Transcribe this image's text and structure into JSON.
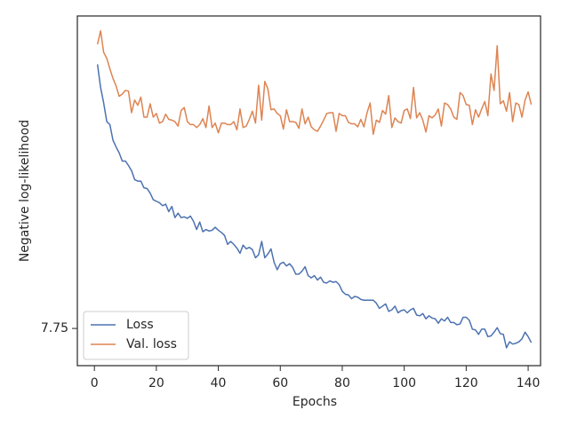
{
  "chart_data": {
    "type": "line",
    "x_label": "Epochs",
    "y_label": "Negative log-likelihood",
    "x": [
      1,
      2,
      3,
      4,
      5,
      6,
      7,
      8,
      9,
      10,
      11,
      12,
      13,
      14,
      15,
      16,
      17,
      18,
      19,
      20,
      21,
      22,
      23,
      24,
      25,
      26,
      27,
      28,
      29,
      30,
      31,
      32,
      33,
      34,
      35,
      36,
      37,
      38,
      39,
      40,
      41,
      42,
      43,
      44,
      45,
      46,
      47,
      48,
      49,
      50,
      51,
      52,
      53,
      54,
      55,
      56,
      57,
      58,
      59,
      60,
      61,
      62,
      63,
      64,
      65,
      66,
      67,
      68,
      69,
      70,
      71,
      72,
      73,
      74,
      75,
      76,
      77,
      78,
      79,
      80,
      81,
      82,
      83,
      84,
      85,
      86,
      87,
      88,
      89,
      90,
      91,
      92,
      93,
      94,
      95,
      96,
      97,
      98,
      99,
      100,
      101,
      102,
      103,
      104,
      105,
      106,
      107,
      108,
      109,
      110,
      111,
      112,
      113,
      114,
      115,
      116,
      117,
      118,
      119,
      120,
      121,
      122,
      123,
      124,
      125,
      126,
      127,
      128,
      129,
      130,
      131,
      132,
      133,
      134,
      135,
      136,
      137,
      138,
      139,
      140,
      141
    ],
    "series": [
      {
        "name": "Loss",
        "color": "#4c72b0",
        "values": [
          8.105,
          8.074,
          8.053,
          8.028,
          8.024,
          8.003,
          7.994,
          7.986,
          7.975,
          7.975,
          7.969,
          7.962,
          7.95,
          7.948,
          7.948,
          7.939,
          7.938,
          7.932,
          7.923,
          7.921,
          7.919,
          7.915,
          7.917,
          7.907,
          7.914,
          7.899,
          7.905,
          7.899,
          7.9,
          7.898,
          7.901,
          7.894,
          7.883,
          7.893,
          7.88,
          7.883,
          7.881,
          7.882,
          7.886,
          7.882,
          7.879,
          7.875,
          7.863,
          7.867,
          7.863,
          7.858,
          7.851,
          7.862,
          7.857,
          7.859,
          7.856,
          7.845,
          7.849,
          7.867,
          7.845,
          7.85,
          7.857,
          7.839,
          7.829,
          7.837,
          7.839,
          7.834,
          7.837,
          7.832,
          7.823,
          7.823,
          7.827,
          7.833,
          7.821,
          7.818,
          7.821,
          7.815,
          7.819,
          7.812,
          7.811,
          7.814,
          7.812,
          7.813,
          7.809,
          7.8,
          7.796,
          7.795,
          7.79,
          7.793,
          7.792,
          7.789,
          7.788,
          7.788,
          7.788,
          7.788,
          7.784,
          7.777,
          7.78,
          7.783,
          7.773,
          7.775,
          7.78,
          7.771,
          7.774,
          7.775,
          7.771,
          7.775,
          7.777,
          7.768,
          7.767,
          7.77,
          7.763,
          7.767,
          7.764,
          7.763,
          7.757,
          7.763,
          7.76,
          7.765,
          7.758,
          7.758,
          7.755,
          7.756,
          7.765,
          7.765,
          7.761,
          7.749,
          7.748,
          7.742,
          7.749,
          7.749,
          7.739,
          7.74,
          7.745,
          7.751,
          7.743,
          7.742,
          7.724,
          7.732,
          7.729,
          7.73,
          7.732,
          7.736,
          7.745,
          7.739,
          7.731
        ]
      },
      {
        "name": "Val. loss",
        "color": "#dd8452",
        "values": [
          8.132,
          8.15,
          8.121,
          8.113,
          8.099,
          8.086,
          8.076,
          8.062,
          8.065,
          8.07,
          8.069,
          8.04,
          8.057,
          8.05,
          8.061,
          8.034,
          8.034,
          8.052,
          8.034,
          8.039,
          8.026,
          8.028,
          8.038,
          8.031,
          8.03,
          8.028,
          8.022,
          8.043,
          8.047,
          8.028,
          8.024,
          8.024,
          8.02,
          8.024,
          8.032,
          8.02,
          8.049,
          8.02,
          8.026,
          8.013,
          8.026,
          8.026,
          8.024,
          8.024,
          8.028,
          8.017,
          8.045,
          8.02,
          8.022,
          8.031,
          8.042,
          8.026,
          8.077,
          8.03,
          8.082,
          8.072,
          8.044,
          8.045,
          8.039,
          8.036,
          8.018,
          8.044,
          8.028,
          8.028,
          8.027,
          8.019,
          8.045,
          8.025,
          8.034,
          8.021,
          8.017,
          8.015,
          8.022,
          8.03,
          8.039,
          8.04,
          8.04,
          8.015,
          8.039,
          8.036,
          8.036,
          8.027,
          8.025,
          8.025,
          8.021,
          8.031,
          8.021,
          8.04,
          8.053,
          8.011,
          8.03,
          8.027,
          8.043,
          8.038,
          8.063,
          8.02,
          8.033,
          8.028,
          8.026,
          8.043,
          8.045,
          8.032,
          8.074,
          8.033,
          8.04,
          8.03,
          8.014,
          8.036,
          8.033,
          8.037,
          8.045,
          8.022,
          8.053,
          8.051,
          8.045,
          8.034,
          8.031,
          8.067,
          8.063,
          8.051,
          8.05,
          8.024,
          8.044,
          8.034,
          8.045,
          8.055,
          8.036,
          8.092,
          8.07,
          8.13,
          8.052,
          8.056,
          8.042,
          8.067,
          8.028,
          8.053,
          8.051,
          8.034,
          8.057,
          8.068,
          8.051
        ]
      }
    ],
    "xlim": [
      -5.5,
      144
    ],
    "xticks": [
      0,
      20,
      40,
      60,
      80,
      100,
      120,
      140
    ],
    "ylim": [
      7.7,
      8.17
    ],
    "yticks": [
      7.75
    ],
    "grid": false,
    "legend": "lower left"
  }
}
